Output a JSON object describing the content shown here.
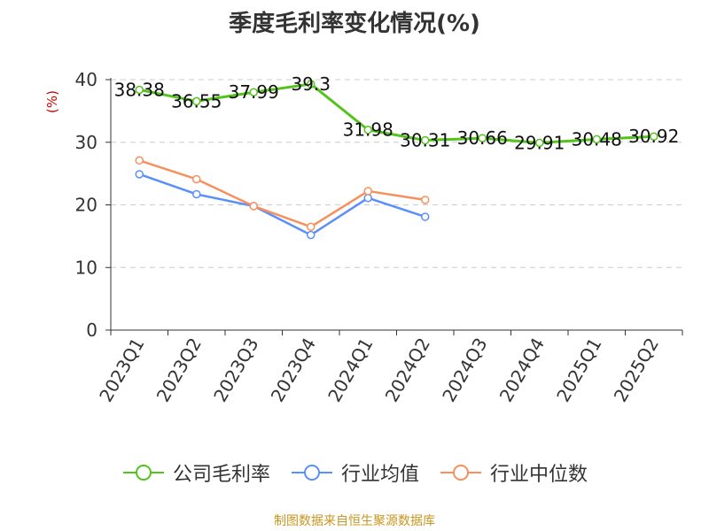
{
  "chart_data": {
    "type": "line",
    "title": "季度毛利率变化情况(%)",
    "ylabel": "(%)",
    "xlabel": "",
    "ylim": [
      0,
      40
    ],
    "yticks": [
      0,
      10,
      20,
      30,
      40
    ],
    "grid": "horizontal-dashed",
    "legend_position": "bottom",
    "categories": [
      "2023Q1",
      "2023Q2",
      "2023Q3",
      "2023Q4",
      "2024Q1",
      "2024Q2",
      "2024Q3",
      "2024Q4",
      "2025Q1",
      "2025Q2"
    ],
    "series": [
      {
        "name": "公司毛利率",
        "color": "#52c41a",
        "show_labels": true,
        "values": [
          38.38,
          36.55,
          37.99,
          39.3,
          31.98,
          30.31,
          30.66,
          29.91,
          30.48,
          30.92
        ]
      },
      {
        "name": "行业均值",
        "color": "#5b8ff9",
        "show_labels": false,
        "values": [
          24.9,
          21.7,
          19.8,
          15.2,
          21.1,
          18.1,
          null,
          null,
          null,
          null
        ]
      },
      {
        "name": "行业中位数",
        "color": "#f6905e",
        "show_labels": false,
        "values": [
          27.1,
          24.1,
          19.8,
          16.5,
          22.2,
          20.8,
          null,
          null,
          null,
          null
        ]
      }
    ]
  },
  "source": "制图数据来自恒生聚源数据库"
}
